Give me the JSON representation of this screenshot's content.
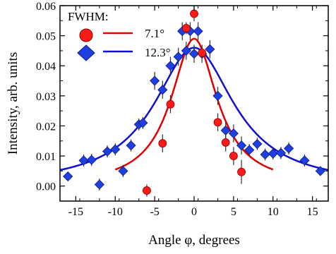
{
  "chart_data": {
    "type": "scatter",
    "xlabel": "Angle φ, degrees",
    "ylabel": "Intensity, arb. units",
    "xlim": [
      -17,
      17
    ],
    "ylim": [
      -0.005,
      0.06
    ],
    "x_ticks": [
      -15,
      -10,
      -5,
      0,
      5,
      10,
      15
    ],
    "x_tick_labels": [
      "-15",
      "-10",
      "-5",
      "0",
      "5",
      "10",
      "15"
    ],
    "y_ticks": [
      0.0,
      0.01,
      0.02,
      0.03,
      0.04,
      0.05,
      0.06
    ],
    "y_tick_labels": [
      "0.00",
      "0.01",
      "0.02",
      "0.03",
      "0.04",
      "0.05",
      "0.06"
    ],
    "grid": false,
    "legend": {
      "title": "FWHM:",
      "placement": "top-left",
      "entries": [
        {
          "label": "7.1°",
          "marker": "circle",
          "color": "#ff1a1a",
          "line_color": "#e00000"
        },
        {
          "label": "12.3°",
          "marker": "diamond",
          "color": "#1f3fe0",
          "line_color": "#1010d0"
        }
      ]
    },
    "series": [
      {
        "marker": "circle",
        "color": "#ff1a1a",
        "points": [
          {
            "x": -6,
            "y": -0.0015,
            "err": 0.002
          },
          {
            "x": -4,
            "y": 0.0142,
            "err": 0.003
          },
          {
            "x": -3,
            "y": 0.0272,
            "err": 0.003
          },
          {
            "x": -1,
            "y": 0.0525,
            "err": 0.002
          },
          {
            "x": 0,
            "y": 0.0573,
            "err": 0.0025
          },
          {
            "x": 1,
            "y": 0.0443,
            "err": 0.002
          },
          {
            "x": 3,
            "y": 0.0212,
            "err": 0.003
          },
          {
            "x": 4,
            "y": 0.0145,
            "err": 0.003
          },
          {
            "x": 5,
            "y": 0.01,
            "err": 0.003
          },
          {
            "x": 6,
            "y": 0.0047,
            "err": 0.004
          }
        ],
        "fit": {
          "center": 0,
          "fwhm": 7.1,
          "amplitude": 0.049,
          "xrange": [
            -10,
            10
          ]
        }
      },
      {
        "marker": "diamond",
        "color": "#1f3fe0",
        "points": [
          {
            "x": -16,
            "y": 0.0032,
            "err": 0.0015
          },
          {
            "x": -14,
            "y": 0.0085,
            "err": 0.002
          },
          {
            "x": -13,
            "y": 0.0087,
            "err": 0.002
          },
          {
            "x": -12,
            "y": 0.0005,
            "err": 0.002
          },
          {
            "x": -11,
            "y": 0.0115,
            "err": 0.002
          },
          {
            "x": -10,
            "y": 0.0122,
            "err": 0.002
          },
          {
            "x": -9,
            "y": 0.005,
            "err": 0.002
          },
          {
            "x": -8,
            "y": 0.0135,
            "err": 0.002
          },
          {
            "x": -7,
            "y": 0.0205,
            "err": 0.002
          },
          {
            "x": -6.5,
            "y": 0.021,
            "err": 0.002
          },
          {
            "x": -5,
            "y": 0.035,
            "err": 0.003
          },
          {
            "x": -4,
            "y": 0.032,
            "err": 0.003
          },
          {
            "x": -3,
            "y": 0.04,
            "err": 0.003
          },
          {
            "x": -2,
            "y": 0.043,
            "err": 0.003
          },
          {
            "x": -1.5,
            "y": 0.0515,
            "err": 0.003
          },
          {
            "x": -1,
            "y": 0.045,
            "err": 0.003
          },
          {
            "x": -0.5,
            "y": 0.0515,
            "err": 0.003
          },
          {
            "x": 0,
            "y": 0.044,
            "err": 0.003
          },
          {
            "x": 0.5,
            "y": 0.0515,
            "err": 0.003
          },
          {
            "x": 1,
            "y": 0.044,
            "err": 0.003
          },
          {
            "x": 2,
            "y": 0.0455,
            "err": 0.003
          },
          {
            "x": 3,
            "y": 0.03,
            "err": 0.003
          },
          {
            "x": 4,
            "y": 0.0185,
            "err": 0.003
          },
          {
            "x": 5,
            "y": 0.0175,
            "err": 0.003
          },
          {
            "x": 6,
            "y": 0.0135,
            "err": 0.003
          },
          {
            "x": 7,
            "y": 0.012,
            "err": 0.002
          },
          {
            "x": 8,
            "y": 0.014,
            "err": 0.002
          },
          {
            "x": 9,
            "y": 0.0105,
            "err": 0.002
          },
          {
            "x": 10,
            "y": 0.0108,
            "err": 0.002
          },
          {
            "x": 11,
            "y": 0.011,
            "err": 0.002
          },
          {
            "x": 12,
            "y": 0.0125,
            "err": 0.002
          },
          {
            "x": 14,
            "y": 0.0085,
            "err": 0.002
          },
          {
            "x": 16,
            "y": 0.005,
            "err": 0.0015
          }
        ],
        "fit": {
          "center": 0,
          "fwhm": 12.3,
          "amplitude": 0.046,
          "xrange": [
            -17,
            17
          ]
        }
      }
    ]
  }
}
